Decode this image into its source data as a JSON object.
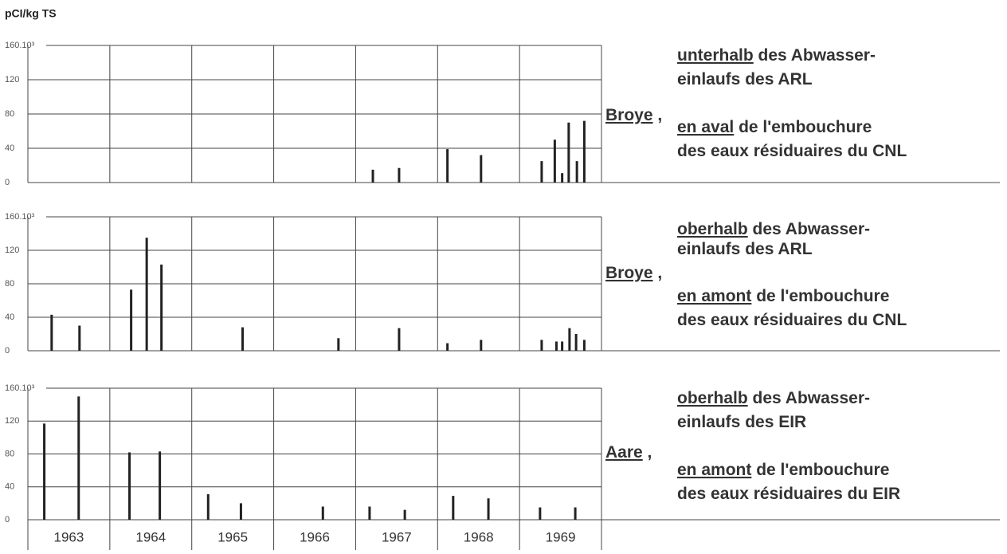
{
  "y_label": "pCI/kg TS",
  "years": [
    1963,
    1964,
    1965,
    1966,
    1967,
    1968,
    1969
  ],
  "chart_data": [
    {
      "type": "bar",
      "color": "#222",
      "river": {
        "underlined": "Broye",
        "text": ","
      },
      "notes": [
        {
          "underlined": "unterhalb",
          "text": "des Abwasser-"
        },
        {
          "text": "einlaufs des ARL"
        },
        {
          "underlined": "en aval",
          "text": "de l'embouchure"
        },
        {
          "text": "des eaux résiduaires du CNL"
        }
      ],
      "x": [
        1967.21,
        1967.53,
        1968.12,
        1968.53,
        1969.27,
        1969.43,
        1969.52,
        1969.6,
        1969.7,
        1969.79
      ],
      "values": [
        15,
        17,
        39,
        32,
        25,
        50,
        11,
        70,
        25,
        72
      ],
      "xlim": [
        1963,
        1970
      ],
      "xticks": [
        1963,
        1964,
        1965,
        1966,
        1967,
        1968,
        1969,
        1970
      ],
      "ylim": [
        0,
        160
      ],
      "yticks": [
        0,
        40,
        80,
        120,
        {
          "value": 160,
          "label": "160.10³"
        }
      ],
      "grid": true
    },
    {
      "type": "bar",
      "color": "#222",
      "river": {
        "underlined": "Broye",
        "text": ","
      },
      "notes": [
        {
          "underlined": "oberhalb",
          "text": "des Abwasser-"
        },
        {
          "text": "einlaufs des ARL"
        },
        {
          "underlined": "en amont",
          "text": "de l'embouchure"
        },
        {
          "text": "des eaux résiduaires du CNL"
        }
      ],
      "x": [
        1963.29,
        1963.63,
        1964.26,
        1964.45,
        1964.63,
        1965.62,
        1966.79,
        1967.53,
        1968.12,
        1968.53,
        1969.27,
        1969.45,
        1969.52,
        1969.61,
        1969.69,
        1969.79
      ],
      "values": [
        43,
        30,
        73,
        135,
        103,
        28,
        15,
        27,
        9,
        13,
        13,
        11,
        11,
        27,
        20,
        13
      ],
      "xlim": [
        1963,
        1970
      ],
      "xticks": [
        1963,
        1964,
        1965,
        1966,
        1967,
        1968,
        1969,
        1970
      ],
      "ylim": [
        0,
        160
      ],
      "yticks": [
        0,
        40,
        80,
        120,
        {
          "value": 160,
          "label": "160.10³"
        }
      ],
      "grid": true
    },
    {
      "type": "bar",
      "color": "#222",
      "river": {
        "underlined": "Aare",
        "text": ","
      },
      "notes": [
        {
          "underlined": "oberhalb",
          "text": "des Abwasser-"
        },
        {
          "text": "einlaufs des EIR"
        },
        {
          "underlined": "en amont",
          "text": "de l'embouchure"
        },
        {
          "text": "des eaux résiduaires du EIR"
        }
      ],
      "x": [
        1963.2,
        1963.62,
        1964.24,
        1964.61,
        1965.2,
        1965.6,
        1966.6,
        1967.17,
        1967.6,
        1968.19,
        1968.62,
        1969.25,
        1969.68
      ],
      "values": [
        117,
        150,
        82,
        83,
        31,
        20,
        16,
        16,
        12,
        29,
        26,
        15,
        15
      ],
      "xlim": [
        1963,
        1970
      ],
      "xticks": [
        1963,
        1964,
        1965,
        1966,
        1967,
        1968,
        1969,
        1970
      ],
      "ylim": [
        0,
        160
      ],
      "yticks": [
        0,
        40,
        80,
        120,
        {
          "value": 160,
          "label": "160.10³"
        }
      ],
      "grid": true
    }
  ]
}
